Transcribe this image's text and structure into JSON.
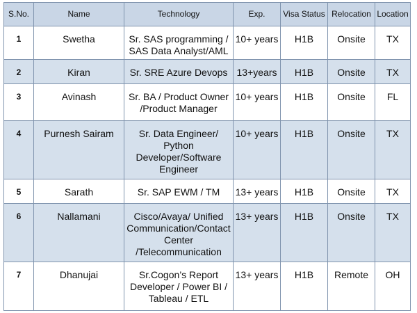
{
  "table": {
    "headers": [
      "S.No.",
      "Name",
      "Technology",
      "Exp.",
      "Visa Status",
      "Relocation",
      "Location"
    ],
    "rows": [
      {
        "sno": "1",
        "name": "Swetha",
        "technology": "Sr. SAS programming / SAS Data Analyst/AML",
        "exp": "10+ years",
        "visa": "H1B",
        "relocation": "Onsite",
        "location": "TX"
      },
      {
        "sno": "2",
        "name": "Kiran",
        "technology": "Sr. SRE Azure Devops",
        "exp": "13+years",
        "visa": "H1B",
        "relocation": "Onsite",
        "location": "TX"
      },
      {
        "sno": "3",
        "name": "Avinash",
        "technology": "Sr. BA / Product Owner /Product Manager",
        "exp": "10+ years",
        "visa": "H1B",
        "relocation": "Onsite",
        "location": "FL"
      },
      {
        "sno": "4",
        "name": "Purnesh Sairam",
        "technology": "Sr. Data Engineer/ Python Developer/Software Engineer",
        "exp": "10+ years",
        "visa": "H1B",
        "relocation": "Onsite",
        "location": "TX"
      },
      {
        "sno": "5",
        "name": "Sarath",
        "technology": "Sr. SAP EWM / TM",
        "exp": "13+ years",
        "visa": "H1B",
        "relocation": "Onsite",
        "location": "TX"
      },
      {
        "sno": "6",
        "name": "Nallamani",
        "technology": "Cisco/Avaya/ Unified Communication/Contact Center /Telecommunication",
        "exp": "13+ years",
        "visa": "H1B",
        "relocation": "Onsite",
        "location": "TX"
      },
      {
        "sno": "7",
        "name": "Dhanujai",
        "technology": "Sr.Cogon’s Report Developer / Power BI / Tableau / ETL",
        "exp": "13+ years",
        "visa": "H1B",
        "relocation": "Remote",
        "location": "OH"
      }
    ]
  },
  "colors": {
    "header_bg": "#c9d6e6",
    "shaded_row_bg": "#d5e0ec",
    "border": "#7f93ad"
  }
}
